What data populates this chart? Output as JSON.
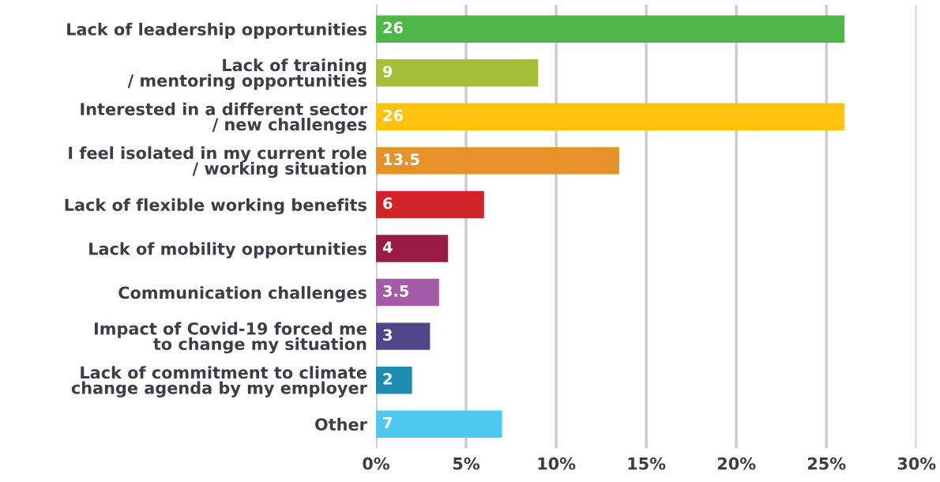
{
  "chart_data": {
    "type": "bar",
    "orientation": "horizontal",
    "categories": [
      "Lack of leadership opportunities",
      "Lack of training\n/ mentoring opportunities",
      "Interested in a different sector\n/ new challenges",
      "I feel isolated in my current role\n/ working situation",
      "Lack of flexible working benefits",
      "Lack of mobility opportunities",
      "Communication challenges",
      "Impact of Covid-19 forced me\nto change my situation",
      "Lack of commitment to climate\nchange agenda by my employer",
      "Other"
    ],
    "values": [
      26,
      9,
      26,
      13.5,
      6,
      4,
      3.5,
      3,
      2,
      7
    ],
    "colors": [
      "#4db848",
      "#a6bf38",
      "#fec20f",
      "#e5922a",
      "#d2232a",
      "#9a1b45",
      "#a35ba8",
      "#52448a",
      "#1d8bb0",
      "#4ec9f3"
    ],
    "data_labels": true,
    "xlim": [
      0,
      30
    ],
    "xticks": [
      {
        "value": 0,
        "label": "0%"
      },
      {
        "value": 5,
        "label": "5%"
      },
      {
        "value": 10,
        "label": "10%"
      },
      {
        "value": 15,
        "label": "15%"
      },
      {
        "value": 20,
        "label": "20%"
      },
      {
        "value": 25,
        "label": "25%"
      },
      {
        "value": 30,
        "label": "30%"
      }
    ],
    "grid": "x"
  }
}
